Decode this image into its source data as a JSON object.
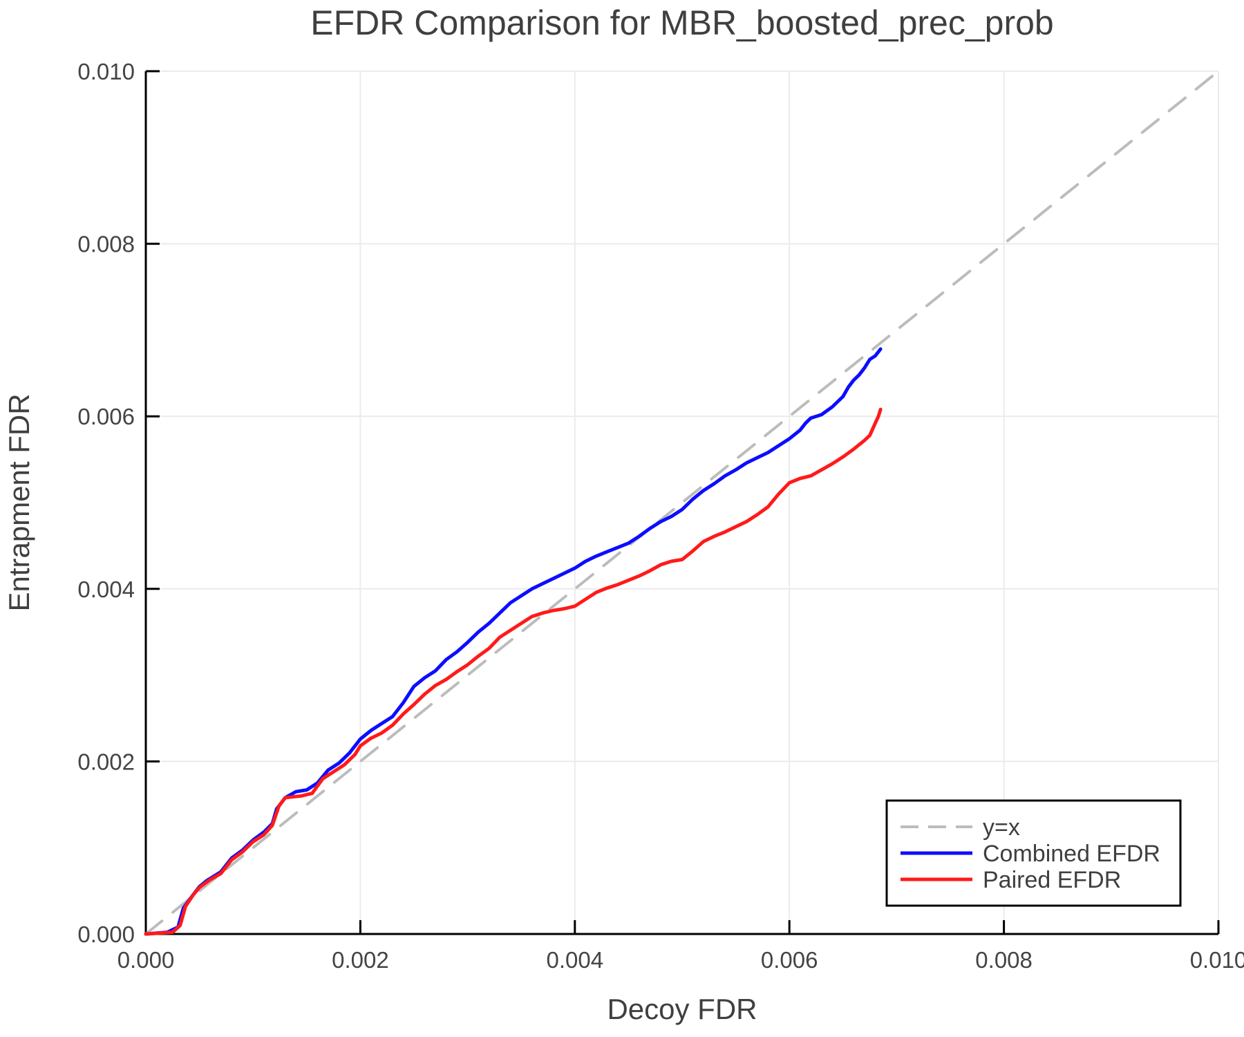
{
  "figure": {
    "background": "#ffffff"
  },
  "chart_data": {
    "type": "line",
    "title": "EFDR Comparison for MBR_boosted_prec_prob",
    "xlabel": "Decoy FDR",
    "ylabel": "Entrapment FDR",
    "xlim": [
      0.0,
      0.01
    ],
    "ylim": [
      0.0,
      0.01
    ],
    "xticks": [
      0.0,
      0.002,
      0.004,
      0.006,
      0.008,
      0.01
    ],
    "yticks": [
      0.0,
      0.002,
      0.004,
      0.006,
      0.008,
      0.01
    ],
    "tick_decimals": 3,
    "grid": true,
    "legend_position": "lower-right",
    "colors": {
      "identity_line": "#bcbcbc",
      "combined_efdr": "#0d0dff",
      "paired_efdr": "#ff1a1a",
      "text": "#3f3f3f",
      "axis": "#000000",
      "gridline": "#ebebeb",
      "legend_border": "#000000",
      "legend_background": "#ffffff"
    },
    "series": [
      {
        "name": "y=x",
        "style": "dashed",
        "color": "#bcbcbc",
        "width": 4,
        "points": [
          [
            0.0,
            0.0
          ],
          [
            0.01,
            0.01
          ]
        ]
      },
      {
        "name": "Combined EFDR",
        "style": "solid",
        "color": "#0d0dff",
        "width": 5,
        "points": [
          [
            0.0,
            0.0
          ],
          [
            0.0002,
            2e-05
          ],
          [
            0.0003,
            8e-05
          ],
          [
            0.00035,
            0.0003
          ],
          [
            0.00042,
            0.00042
          ],
          [
            0.0005,
            0.00055
          ],
          [
            0.00057,
            0.00062
          ],
          [
            0.0007,
            0.00072
          ],
          [
            0.0008,
            0.00088
          ],
          [
            0.0009,
            0.00097
          ],
          [
            0.001,
            0.00109
          ],
          [
            0.0011,
            0.00118
          ],
          [
            0.00118,
            0.00128
          ],
          [
            0.00122,
            0.00145
          ],
          [
            0.0013,
            0.00158
          ],
          [
            0.0014,
            0.00165
          ],
          [
            0.0015,
            0.00167
          ],
          [
            0.0016,
            0.00175
          ],
          [
            0.0017,
            0.0019
          ],
          [
            0.0018,
            0.00198
          ],
          [
            0.0019,
            0.0021
          ],
          [
            0.002,
            0.00226
          ],
          [
            0.0021,
            0.00236
          ],
          [
            0.0022,
            0.00244
          ],
          [
            0.0023,
            0.00252
          ],
          [
            0.0024,
            0.00268
          ],
          [
            0.0025,
            0.00287
          ],
          [
            0.0026,
            0.00297
          ],
          [
            0.0027,
            0.00305
          ],
          [
            0.0028,
            0.00318
          ],
          [
            0.0029,
            0.00327
          ],
          [
            0.003,
            0.00338
          ],
          [
            0.0031,
            0.0035
          ],
          [
            0.0032,
            0.0036
          ],
          [
            0.0033,
            0.00372
          ],
          [
            0.0034,
            0.00384
          ],
          [
            0.0035,
            0.00392
          ],
          [
            0.0036,
            0.004
          ],
          [
            0.0037,
            0.00406
          ],
          [
            0.0038,
            0.00412
          ],
          [
            0.0039,
            0.00418
          ],
          [
            0.004,
            0.00424
          ],
          [
            0.0041,
            0.00432
          ],
          [
            0.0042,
            0.00438
          ],
          [
            0.0043,
            0.00443
          ],
          [
            0.0044,
            0.00448
          ],
          [
            0.0045,
            0.00453
          ],
          [
            0.0046,
            0.00461
          ],
          [
            0.0047,
            0.0047
          ],
          [
            0.0048,
            0.00478
          ],
          [
            0.0049,
            0.00484
          ],
          [
            0.005,
            0.00492
          ],
          [
            0.0051,
            0.00504
          ],
          [
            0.0052,
            0.00514
          ],
          [
            0.0053,
            0.00522
          ],
          [
            0.0054,
            0.00531
          ],
          [
            0.0055,
            0.00538
          ],
          [
            0.0056,
            0.00546
          ],
          [
            0.0057,
            0.00552
          ],
          [
            0.0058,
            0.00558
          ],
          [
            0.0059,
            0.00566
          ],
          [
            0.006,
            0.00574
          ],
          [
            0.0061,
            0.00584
          ],
          [
            0.00615,
            0.00592
          ],
          [
            0.0062,
            0.00598
          ],
          [
            0.0063,
            0.00602
          ],
          [
            0.0064,
            0.00611
          ],
          [
            0.0065,
            0.00623
          ],
          [
            0.00655,
            0.00634
          ],
          [
            0.0066,
            0.00642
          ],
          [
            0.00665,
            0.00648
          ],
          [
            0.0067,
            0.00656
          ],
          [
            0.00675,
            0.00666
          ],
          [
            0.0068,
            0.0067
          ],
          [
            0.00685,
            0.00678
          ]
        ]
      },
      {
        "name": "Paired EFDR",
        "style": "solid",
        "color": "#ff1a1a",
        "width": 5,
        "points": [
          [
            0.0,
            0.0
          ],
          [
            0.00025,
            2e-05
          ],
          [
            0.00032,
            0.0001
          ],
          [
            0.00037,
            0.00032
          ],
          [
            0.00044,
            0.00045
          ],
          [
            0.0005,
            0.00054
          ],
          [
            0.0006,
            0.00063
          ],
          [
            0.0007,
            0.0007
          ],
          [
            0.0008,
            0.00086
          ],
          [
            0.0009,
            0.00095
          ],
          [
            0.001,
            0.00107
          ],
          [
            0.0011,
            0.00115
          ],
          [
            0.00118,
            0.00126
          ],
          [
            0.00124,
            0.00148
          ],
          [
            0.0013,
            0.00158
          ],
          [
            0.00145,
            0.0016
          ],
          [
            0.00155,
            0.00163
          ],
          [
            0.00165,
            0.0018
          ],
          [
            0.00175,
            0.00188
          ],
          [
            0.00185,
            0.00196
          ],
          [
            0.00195,
            0.00208
          ],
          [
            0.002,
            0.00218
          ],
          [
            0.0021,
            0.00227
          ],
          [
            0.0022,
            0.00233
          ],
          [
            0.0023,
            0.00242
          ],
          [
            0.0024,
            0.00255
          ],
          [
            0.0025,
            0.00266
          ],
          [
            0.0026,
            0.00278
          ],
          [
            0.0027,
            0.00288
          ],
          [
            0.0028,
            0.00295
          ],
          [
            0.0029,
            0.00304
          ],
          [
            0.003,
            0.00312
          ],
          [
            0.0031,
            0.00322
          ],
          [
            0.0032,
            0.00331
          ],
          [
            0.0033,
            0.00344
          ],
          [
            0.0034,
            0.00352
          ],
          [
            0.0035,
            0.0036
          ],
          [
            0.0036,
            0.00368
          ],
          [
            0.0037,
            0.00372
          ],
          [
            0.0038,
            0.00375
          ],
          [
            0.0039,
            0.00377
          ],
          [
            0.004,
            0.0038
          ],
          [
            0.0041,
            0.00388
          ],
          [
            0.0042,
            0.00396
          ],
          [
            0.0043,
            0.00401
          ],
          [
            0.0044,
            0.00405
          ],
          [
            0.0045,
            0.0041
          ],
          [
            0.0046,
            0.00415
          ],
          [
            0.0047,
            0.00421
          ],
          [
            0.0048,
            0.00428
          ],
          [
            0.0049,
            0.00432
          ],
          [
            0.005,
            0.00434
          ],
          [
            0.0051,
            0.00444
          ],
          [
            0.0052,
            0.00455
          ],
          [
            0.0053,
            0.00461
          ],
          [
            0.0054,
            0.00466
          ],
          [
            0.0055,
            0.00472
          ],
          [
            0.0056,
            0.00478
          ],
          [
            0.0057,
            0.00486
          ],
          [
            0.0058,
            0.00495
          ],
          [
            0.0059,
            0.0051
          ],
          [
            0.006,
            0.00523
          ],
          [
            0.0061,
            0.00528
          ],
          [
            0.0062,
            0.00531
          ],
          [
            0.0063,
            0.00538
          ],
          [
            0.0064,
            0.00545
          ],
          [
            0.0065,
            0.00553
          ],
          [
            0.0066,
            0.00562
          ],
          [
            0.0067,
            0.00572
          ],
          [
            0.00675,
            0.00578
          ],
          [
            0.0068,
            0.00592
          ],
          [
            0.00683,
            0.006
          ],
          [
            0.00685,
            0.00608
          ]
        ]
      }
    ],
    "legend_entries": [
      "y=x",
      "Combined EFDR",
      "Paired EFDR"
    ]
  }
}
